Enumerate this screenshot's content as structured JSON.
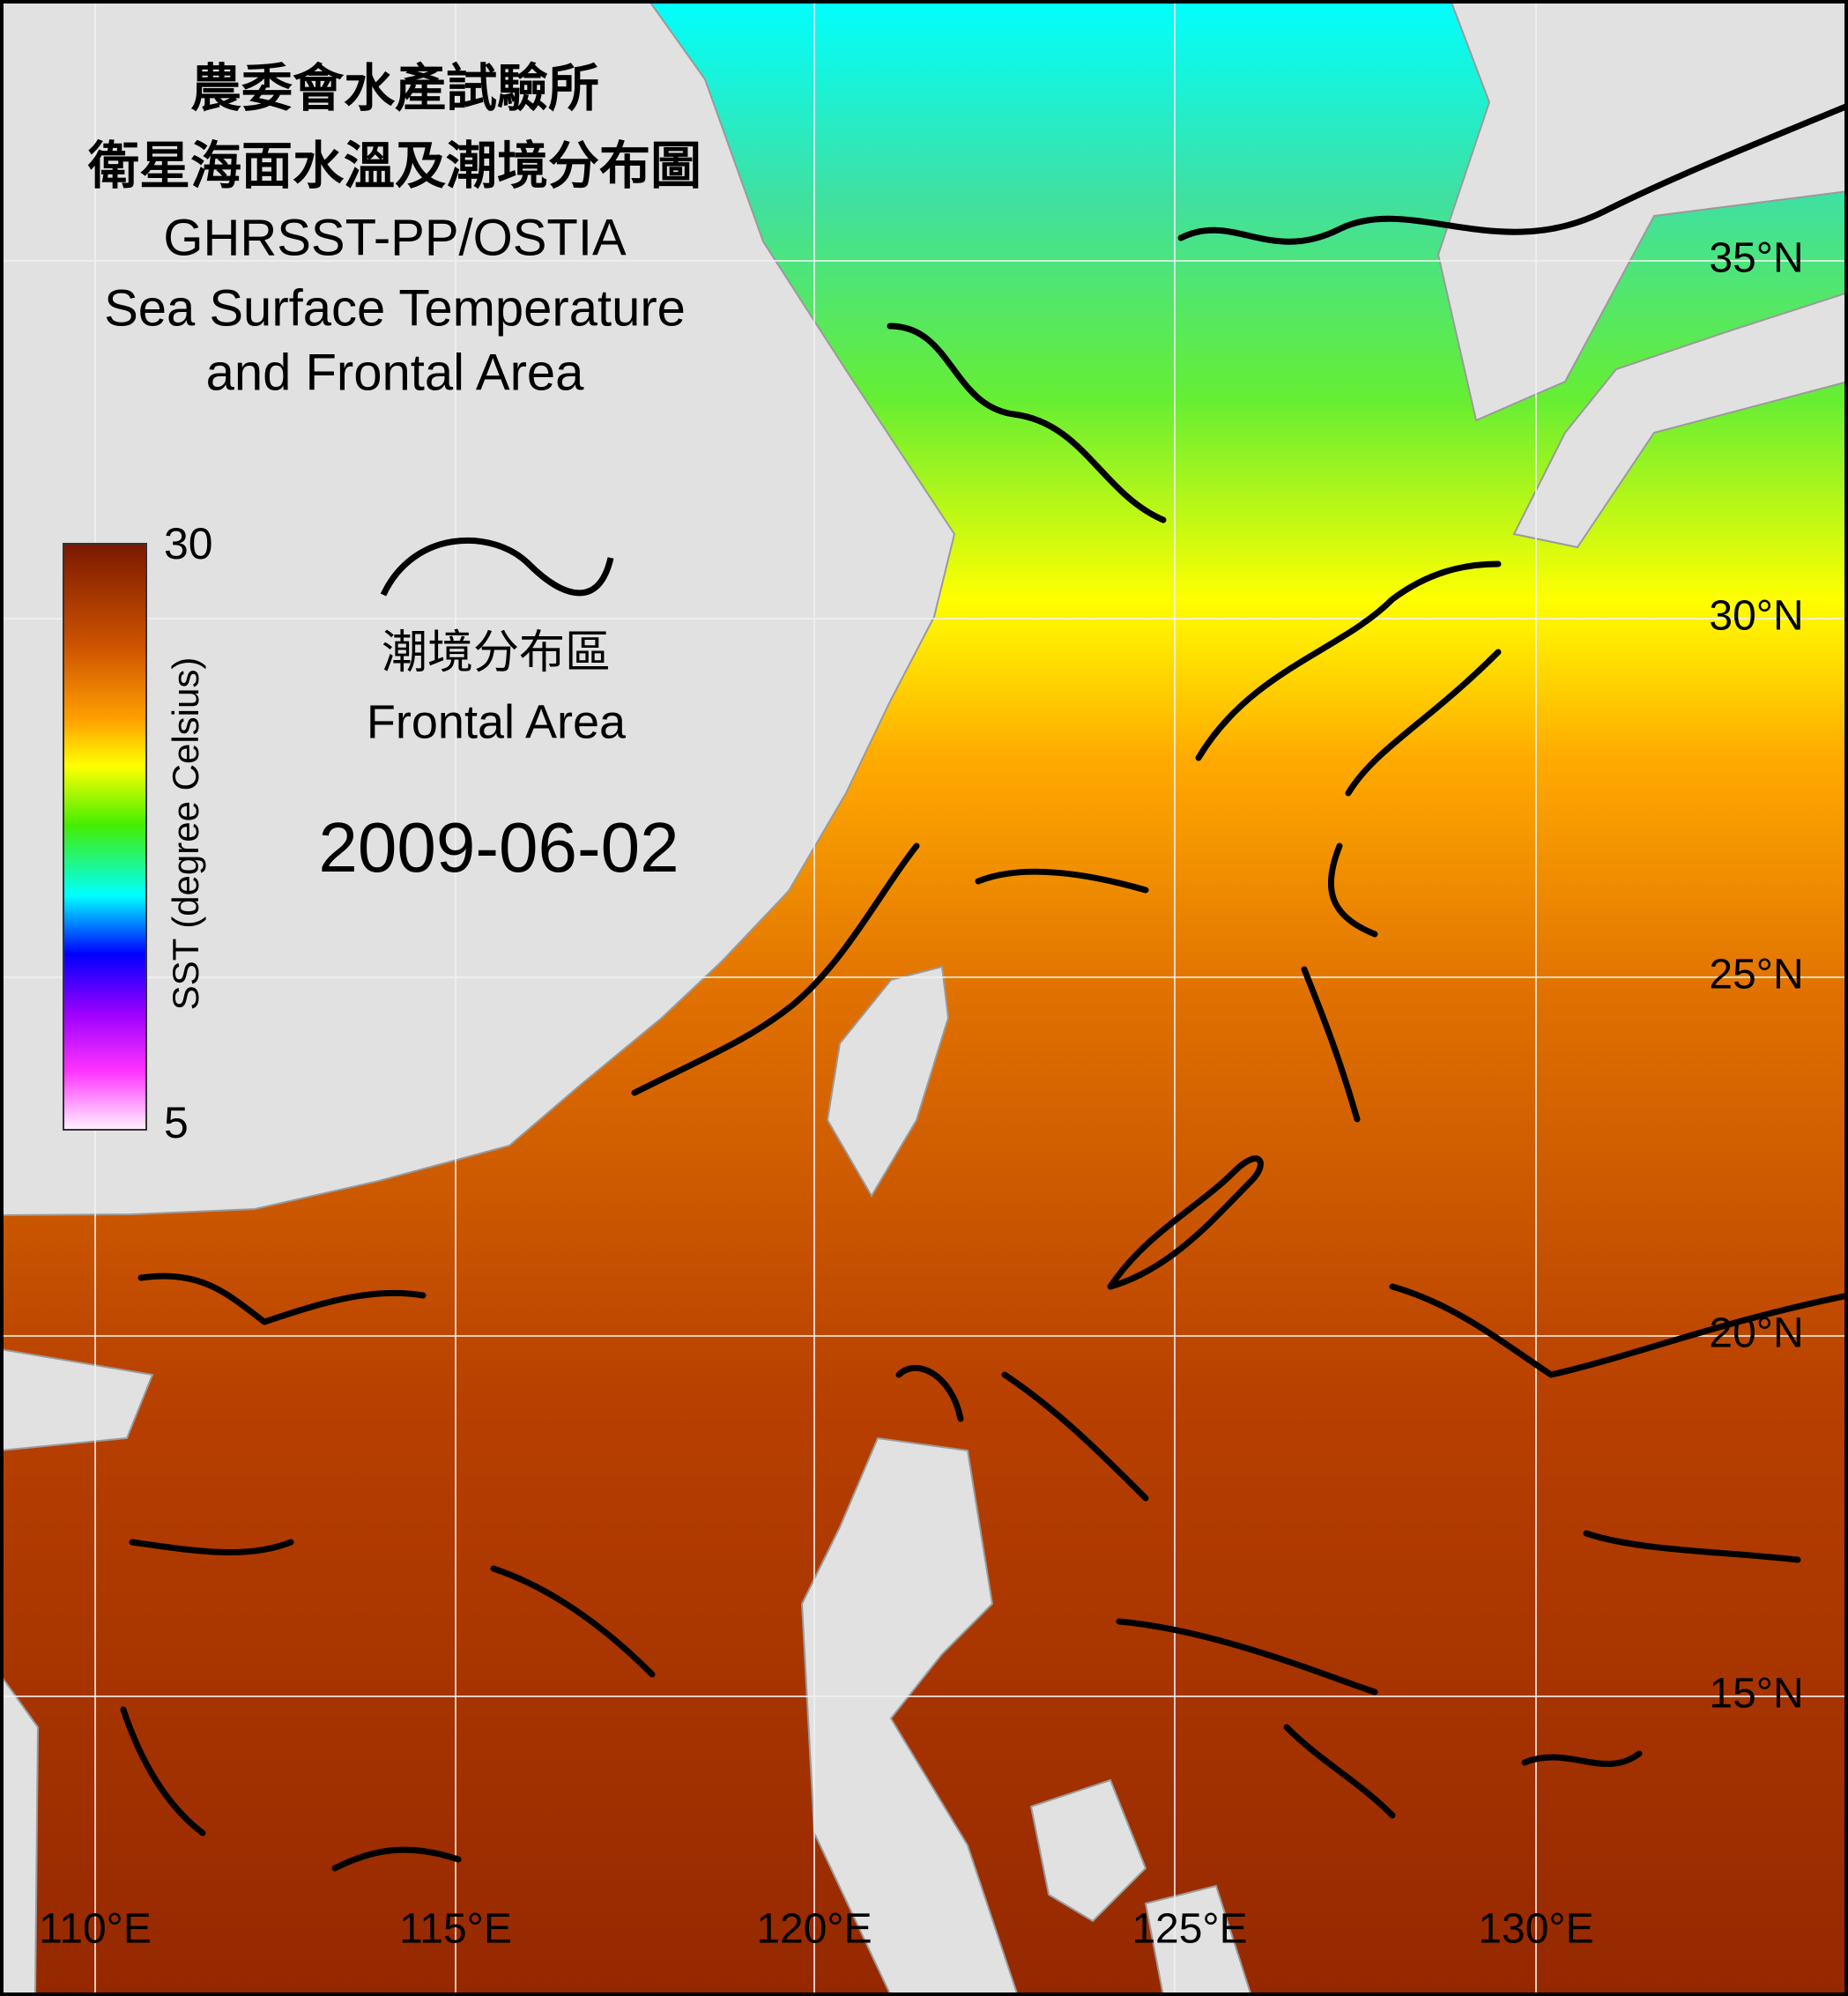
{
  "header": {
    "title_zh_1": "農委會水產試驗所",
    "title_zh_2": "衛星海面水溫及潮境分布圖",
    "title_en_1": "GHRSST-PP/OSTIA",
    "title_en_2": "Sea Surface Temperature",
    "title_en_3": "and Frontal Area"
  },
  "colorbar": {
    "label": "SST (degree Celsius)",
    "max": 30,
    "min": 5
  },
  "legend": {
    "label_zh": "潮境分布區",
    "label_en": "Frontal Area"
  },
  "date": "2009-06-02",
  "longitude_labels": [
    "110°E",
    "115°E",
    "120°E",
    "125°E",
    "130°E"
  ],
  "latitude_labels": [
    "35°N",
    "30°N",
    "25°N",
    "20°N",
    "15°N"
  ]
}
